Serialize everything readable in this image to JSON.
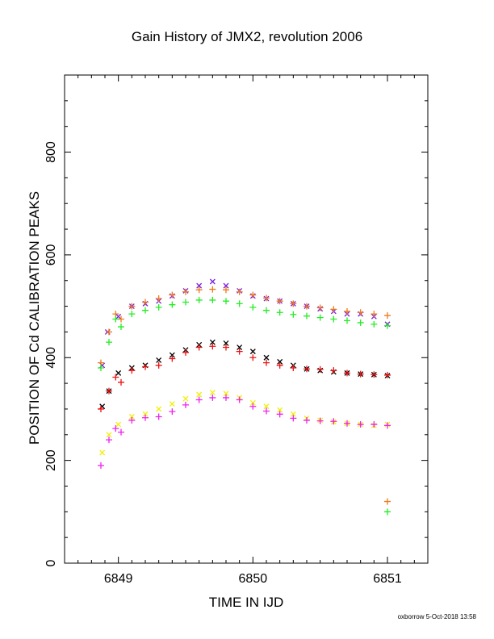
{
  "chart_data": {
    "type": "scatter",
    "title": "Gain History of JMX2, revolution 2006",
    "xlabel": "TIME IN IJD",
    "ylabel": "POSITION OF Cd CALIBRATION PEAKS",
    "xlim": [
      6848.6,
      6851.3
    ],
    "ylim": [
      0,
      950
    ],
    "xticks": [
      6849,
      6850,
      6851
    ],
    "yticks": [
      0,
      200,
      400,
      600,
      800
    ],
    "grid": false,
    "legend": "none",
    "series": [
      {
        "marker": "x",
        "color": "#7b1fe0",
        "x": [
          6848.88,
          6848.92,
          6849.0,
          6849.1,
          6849.2,
          6849.3,
          6849.4,
          6849.5,
          6849.6,
          6849.7,
          6849.8,
          6849.9,
          6850.0,
          6850.1,
          6850.2,
          6850.3,
          6850.4,
          6850.5,
          6850.6,
          6850.7,
          6850.8,
          6850.9,
          6851.0
        ],
        "y": [
          385,
          450,
          480,
          500,
          505,
          510,
          520,
          530,
          540,
          548,
          540,
          530,
          520,
          515,
          510,
          505,
          500,
          495,
          490,
          485,
          485,
          480,
          465
        ]
      },
      {
        "marker": "+",
        "color": "#f07818",
        "x": [
          6848.87,
          6848.93,
          6848.98,
          6849.02,
          6849.1,
          6849.2,
          6849.3,
          6849.4,
          6849.5,
          6849.6,
          6849.7,
          6849.8,
          6849.9,
          6850.0,
          6850.1,
          6850.2,
          6850.3,
          6850.4,
          6850.5,
          6850.6,
          6850.7,
          6850.8,
          6850.9,
          6851.0,
          6851.0
        ],
        "y": [
          390,
          450,
          485,
          475,
          500,
          508,
          515,
          522,
          528,
          532,
          533,
          532,
          528,
          522,
          516,
          510,
          505,
          500,
          497,
          494,
          490,
          488,
          485,
          482,
          120
        ]
      },
      {
        "marker": "+",
        "color": "#22ee22",
        "x": [
          6848.87,
          6848.93,
          6848.98,
          6849.02,
          6849.1,
          6849.2,
          6849.3,
          6849.4,
          6849.5,
          6849.6,
          6849.7,
          6849.8,
          6849.9,
          6850.0,
          6850.1,
          6850.2,
          6850.3,
          6850.4,
          6850.5,
          6850.6,
          6850.7,
          6850.8,
          6850.9,
          6851.0,
          6851.0
        ],
        "y": [
          380,
          430,
          475,
          460,
          485,
          492,
          498,
          503,
          508,
          512,
          512,
          510,
          505,
          498,
          492,
          488,
          484,
          481,
          478,
          475,
          472,
          468,
          465,
          462,
          100
        ]
      },
      {
        "marker": "x",
        "color": "#000000",
        "x": [
          6848.88,
          6848.93,
          6849.0,
          6849.1,
          6849.2,
          6849.3,
          6849.4,
          6849.5,
          6849.6,
          6849.7,
          6849.8,
          6849.9,
          6850.0,
          6850.1,
          6850.2,
          6850.3,
          6850.4,
          6850.5,
          6850.6,
          6850.7,
          6850.8,
          6850.9,
          6851.0
        ],
        "y": [
          305,
          335,
          370,
          380,
          385,
          395,
          405,
          415,
          425,
          430,
          428,
          420,
          412,
          400,
          392,
          385,
          378,
          375,
          372,
          370,
          368,
          367,
          365
        ]
      },
      {
        "marker": "+",
        "color": "#ee1111",
        "x": [
          6848.87,
          6848.93,
          6848.98,
          6849.02,
          6849.1,
          6849.2,
          6849.3,
          6849.4,
          6849.5,
          6849.6,
          6849.7,
          6849.8,
          6849.9,
          6850.0,
          6850.1,
          6850.2,
          6850.3,
          6850.4,
          6850.5,
          6850.6,
          6850.7,
          6850.8,
          6850.9,
          6851.0
        ],
        "y": [
          300,
          335,
          362,
          352,
          375,
          382,
          385,
          398,
          410,
          420,
          422,
          420,
          412,
          400,
          390,
          385,
          380,
          378,
          377,
          375,
          370,
          368,
          367,
          366
        ]
      },
      {
        "marker": "x",
        "color": "#f0f000",
        "x": [
          6848.88,
          6848.93,
          6849.0,
          6849.1,
          6849.2,
          6849.3,
          6849.4,
          6849.5,
          6849.6,
          6849.7,
          6849.8,
          6849.9,
          6850.0,
          6850.1,
          6850.2,
          6850.3,
          6850.4,
          6850.5,
          6850.6,
          6850.7,
          6850.8,
          6850.9,
          6851.0
        ],
        "y": [
          215,
          250,
          270,
          285,
          290,
          300,
          310,
          320,
          328,
          332,
          330,
          322,
          312,
          305,
          298,
          290,
          282,
          278,
          275,
          272,
          270,
          268,
          270
        ]
      },
      {
        "marker": "+",
        "color": "#ee22ee",
        "x": [
          6848.87,
          6848.93,
          6848.98,
          6849.02,
          6849.1,
          6849.2,
          6849.3,
          6849.4,
          6849.5,
          6849.6,
          6849.7,
          6849.8,
          6849.9,
          6850.0,
          6850.1,
          6850.2,
          6850.3,
          6850.4,
          6850.5,
          6850.6,
          6850.7,
          6850.8,
          6850.9,
          6851.0
        ],
        "y": [
          190,
          240,
          262,
          255,
          278,
          283,
          285,
          295,
          308,
          318,
          322,
          322,
          318,
          305,
          296,
          290,
          282,
          278,
          277,
          276,
          272,
          270,
          270,
          268
        ]
      }
    ]
  },
  "footer": "oxborrow 5-Oct-2018 13:58"
}
